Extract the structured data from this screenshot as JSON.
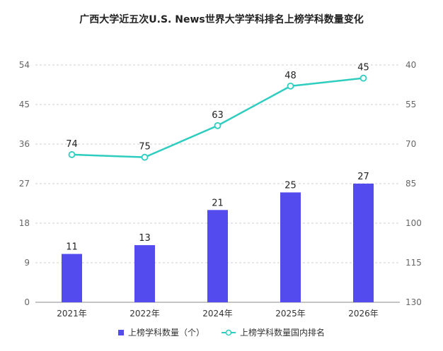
{
  "chart_data": {
    "type": "bar+line",
    "title": "广西大学近五次U.S. News世界大学学科排名上榜学科数量变化",
    "categories": [
      "2021年",
      "2022年",
      "2024年",
      "2025年",
      "2026年"
    ],
    "series": [
      {
        "name": "上榜学科数量（个）",
        "type": "bar",
        "axis": "left",
        "values": [
          11,
          13,
          21,
          25,
          27
        ],
        "color": "#544BEF"
      },
      {
        "name": "上榜学科数量国内排名",
        "type": "line",
        "axis": "right",
        "values": [
          74,
          75,
          63,
          48,
          45
        ],
        "color": "#2ECDC0"
      }
    ],
    "left_axis": {
      "ticks": [
        0,
        9,
        18,
        27,
        36,
        45,
        54
      ],
      "range": [
        0,
        54
      ]
    },
    "right_axis": {
      "ticks": [
        40,
        55,
        70,
        85,
        100,
        115,
        130
      ],
      "range": [
        40,
        130
      ],
      "inverted": true
    },
    "grid": true,
    "legend_position": "bottom"
  }
}
